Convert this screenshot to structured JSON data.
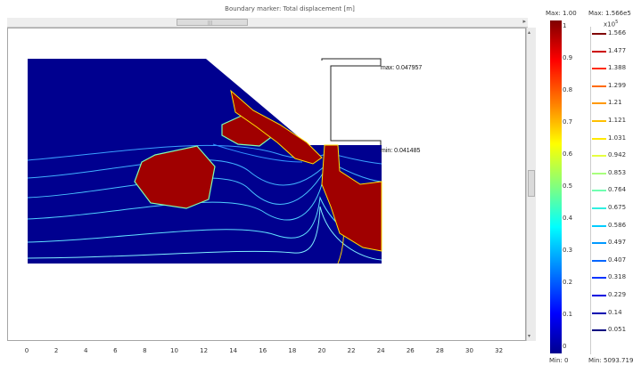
{
  "window": {
    "title": "Boundary marker: Total displacement [m]"
  },
  "annotations": {
    "max": "max: 0.047957",
    "min": "min: 0.041485"
  },
  "x_axis": {
    "ticks": [
      "0",
      "2",
      "4",
      "6",
      "8",
      "10",
      "12",
      "14",
      "16",
      "18",
      "20",
      "22",
      "24",
      "26",
      "28",
      "30",
      "32"
    ]
  },
  "colorbar_surface": {
    "max_label": "Max: 1.00",
    "min_label": "Min: 0",
    "ticks": [
      "1",
      "0.9",
      "0.8",
      "0.7",
      "0.6",
      "0.5",
      "0.4",
      "0.3",
      "0.2",
      "0.1",
      "0"
    ]
  },
  "colorbar_contour": {
    "max_label": "Max: 1.566e5",
    "min_label": "Min: 5093.719",
    "exponent_base": "x10",
    "exponent_power": "5",
    "levels": [
      {
        "label": "1.566",
        "color": "#800000"
      },
      {
        "label": "1.477",
        "color": "#cc0000"
      },
      {
        "label": "1.388",
        "color": "#ff2a00"
      },
      {
        "label": "1.299",
        "color": "#ff6a00"
      },
      {
        "label": "1.21",
        "color": "#ff9900"
      },
      {
        "label": "1.121",
        "color": "#ffc000"
      },
      {
        "label": "1.031",
        "color": "#ffe800"
      },
      {
        "label": "0.942",
        "color": "#e6ff40"
      },
      {
        "label": "0.853",
        "color": "#a8ff7c"
      },
      {
        "label": "0.764",
        "color": "#70ffb0"
      },
      {
        "label": "0.675",
        "color": "#30f0e0"
      },
      {
        "label": "0.586",
        "color": "#00ccff"
      },
      {
        "label": "0.497",
        "color": "#0099ff"
      },
      {
        "label": "0.407",
        "color": "#0066ff"
      },
      {
        "label": "0.318",
        "color": "#0033ff"
      },
      {
        "label": "0.229",
        "color": "#0000e0"
      },
      {
        "label": "0.14",
        "color": "#0000b0"
      },
      {
        "label": "0.051",
        "color": "#000080"
      }
    ]
  },
  "colors": {
    "domain_fill": "#00008f",
    "plastic_zone": "#a00000",
    "contour": "#58b8ff"
  }
}
